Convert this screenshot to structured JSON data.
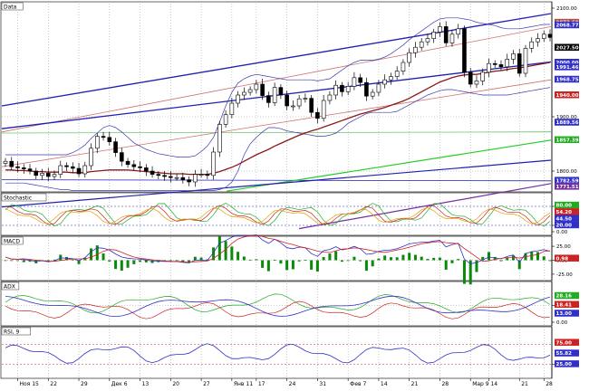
{
  "x_axis": {
    "labels": [
      {
        "text": "Ноя 15",
        "i": 2
      },
      {
        "text": "22",
        "i": 7
      },
      {
        "text": "29",
        "i": 12
      },
      {
        "text": "Дек 6",
        "i": 17
      },
      {
        "text": "13",
        "i": 22
      },
      {
        "text": "20",
        "i": 27
      },
      {
        "text": "27",
        "i": 32
      },
      {
        "text": "Янв 11",
        "i": 37
      },
      {
        "text": "17",
        "i": 41
      },
      {
        "text": "24",
        "i": 46
      },
      {
        "text": "31",
        "i": 51
      },
      {
        "text": "Фев 7",
        "i": 56
      },
      {
        "text": "14",
        "i": 61
      },
      {
        "text": "21",
        "i": 66
      },
      {
        "text": "28",
        "i": 71
      },
      {
        "text": "Мар 9",
        "i": 76
      },
      {
        "text": "14",
        "i": 79
      },
      {
        "text": "21",
        "i": 84
      },
      {
        "text": "28",
        "i": 88
      }
    ]
  },
  "panels": [
    {
      "key": "price",
      "title": "Data",
      "ticks": [
        "2100.00",
        "1900.00",
        "1800.00"
      ],
      "badges": [
        {
          "text": "2073.60",
          "color": "#b34a4a"
        },
        {
          "text": "2068.77",
          "color": "#3030c8"
        },
        {
          "text": "2027.50",
          "color": "#000000"
        },
        {
          "text": "2000.00",
          "color": "#3030c8"
        },
        {
          "text": "1991.46",
          "color": "#3030c8"
        },
        {
          "text": "1968.75",
          "color": "#3030c8"
        },
        {
          "text": "1940.00",
          "color": "#cc2222"
        },
        {
          "text": "1889.56",
          "color": "#3030c8"
        },
        {
          "text": "1857.39",
          "color": "#22aa22"
        },
        {
          "text": "1782.59",
          "color": "#3030c8"
        },
        {
          "text": "1771.51",
          "color": "#7030a0"
        }
      ]
    },
    {
      "key": "stochastic",
      "title": "Stochastic",
      "ticks": [
        "80.00",
        "20.00",
        "0.00"
      ],
      "badges": [
        {
          "text": "80.00",
          "color": "#22aa22"
        },
        {
          "text": "54.20",
          "color": "#cc2222"
        },
        {
          "text": "44.50",
          "color": "#3030c8"
        },
        {
          "text": "20.00",
          "color": "#3030c8"
        }
      ]
    },
    {
      "key": "macd",
      "title": "MACD",
      "ticks": [
        "25.00",
        "0.00",
        "-25.00"
      ],
      "badges": [
        {
          "text": "0.98",
          "color": "#cc2222"
        }
      ]
    },
    {
      "key": "adx",
      "title": "ADX",
      "ticks": [
        "25.00",
        "0.00"
      ],
      "badges": [
        {
          "text": "28.16",
          "color": "#22aa22"
        },
        {
          "text": "18.41",
          "color": "#cc2222"
        },
        {
          "text": "13.00",
          "color": "#3030c8"
        }
      ]
    },
    {
      "key": "rsi",
      "title": "RSI, 9",
      "ticks": [
        "25.00"
      ],
      "badges": [
        {
          "text": "75.00",
          "color": "#cc2222"
        },
        {
          "text": "55.82",
          "color": "#3030c8"
        },
        {
          "text": "25.00",
          "color": "#3030c8"
        }
      ]
    }
  ],
  "chart_data": {
    "type": "candlestick",
    "price_range": [
      1765,
      2105
    ],
    "close": [
      1818,
      1808,
      1806,
      1804,
      1800,
      1792,
      1796,
      1790,
      1794,
      1810,
      1808,
      1805,
      1795,
      1810,
      1842,
      1864,
      1862,
      1854,
      1834,
      1818,
      1812,
      1808,
      1806,
      1800,
      1794,
      1792,
      1790,
      1788,
      1788,
      1784,
      1780,
      1794,
      1794,
      1792,
      1835,
      1886,
      1904,
      1925,
      1940,
      1945,
      1950,
      1960,
      1939,
      1926,
      1954,
      1940,
      1920,
      1920,
      1933,
      1934,
      1908,
      1897,
      1930,
      1940,
      1958,
      1946,
      1956,
      1972,
      1963,
      1938,
      1945,
      1960,
      1968,
      1974,
      1984,
      2000,
      2018,
      2028,
      2038,
      2044,
      2056,
      2066,
      2036,
      2052,
      2062,
      1982,
      1960,
      1966,
      1982,
      1998,
      1996,
      1992,
      2006,
      2016,
      1980,
      2026,
      2038,
      2044,
      2052,
      2046
    ],
    "sma": [
      1802,
      1802,
      1801,
      1801,
      1800,
      1799,
      1799,
      1798,
      1798,
      1798,
      1798,
      1797,
      1797,
      1797,
      1799,
      1800,
      1801,
      1802,
      1802,
      1802,
      1802,
      1801,
      1800,
      1799,
      1798,
      1797,
      1796,
      1795,
      1795,
      1795,
      1794,
      1794,
      1794,
      1794,
      1796,
      1799,
      1803,
      1807,
      1812,
      1818,
      1824,
      1830,
      1835,
      1840,
      1846,
      1851,
      1856,
      1861,
      1866,
      1870,
      1874,
      1877,
      1881,
      1885,
      1889,
      1893,
      1897,
      1901,
      1905,
      1908,
      1911,
      1914,
      1917,
      1921,
      1925,
      1929,
      1934,
      1940,
      1946,
      1952,
      1958,
      1964,
      1968,
      1972,
      1975,
      1977,
      1978,
      1978,
      1980,
      1982,
      1984,
      1985,
      1987,
      1989,
      1990,
      1992,
      1994,
      1996,
      1998,
      2000
    ],
    "bollinger_upper_approx": [
      1830,
      1830,
      1830,
      1830,
      1830,
      1830,
      1830,
      1830,
      1830,
      1830,
      1830,
      1834,
      1840,
      1848,
      1860,
      1870,
      1880,
      1884,
      1880,
      1872,
      1862,
      1852,
      1846,
      1840,
      1836,
      1832,
      1830,
      1828,
      1826,
      1826,
      1826,
      1828,
      1836,
      1846,
      1862,
      1890,
      1920,
      1945,
      1962,
      1970,
      1975,
      1978,
      1976,
      1974,
      1972,
      1970,
      1968,
      1968,
      1968,
      1968,
      1968,
      1966,
      1968,
      1970,
      1978,
      1986,
      1994,
      2000,
      2004,
      2004,
      2004,
      2006,
      2010,
      2016,
      2024,
      2032,
      2042,
      2050,
      2058,
      2066,
      2074,
      2080,
      2082,
      2082,
      2082,
      2080,
      2078,
      2074,
      2072,
      2070,
      2068,
      2064,
      2062,
      2062,
      2062,
      2064,
      2066,
      2068,
      2070,
      2070
    ],
    "bollinger_lower_approx": [
      1778,
      1778,
      1778,
      1778,
      1776,
      1774,
      1772,
      1770,
      1768,
      1766,
      1766,
      1764,
      1764,
      1764,
      1764,
      1764,
      1764,
      1764,
      1764,
      1764,
      1764,
      1764,
      1764,
      1764,
      1764,
      1764,
      1764,
      1764,
      1764,
      1764,
      1764,
      1764,
      1764,
      1764,
      1764,
      1766,
      1770,
      1780,
      1800,
      1830,
      1850,
      1862,
      1872,
      1880,
      1880,
      1878,
      1874,
      1872,
      1870,
      1868,
      1866,
      1864,
      1864,
      1866,
      1870,
      1878,
      1888,
      1894,
      1900,
      1906,
      1908,
      1908,
      1908,
      1908,
      1910,
      1916,
      1922,
      1928,
      1934,
      1940,
      1944,
      1948,
      1950,
      1950,
      1948,
      1946,
      1944,
      1942,
      1940,
      1940,
      1940,
      1940,
      1940,
      1942,
      1944,
      1946,
      1948,
      1950,
      1952,
      1954
    ]
  }
}
